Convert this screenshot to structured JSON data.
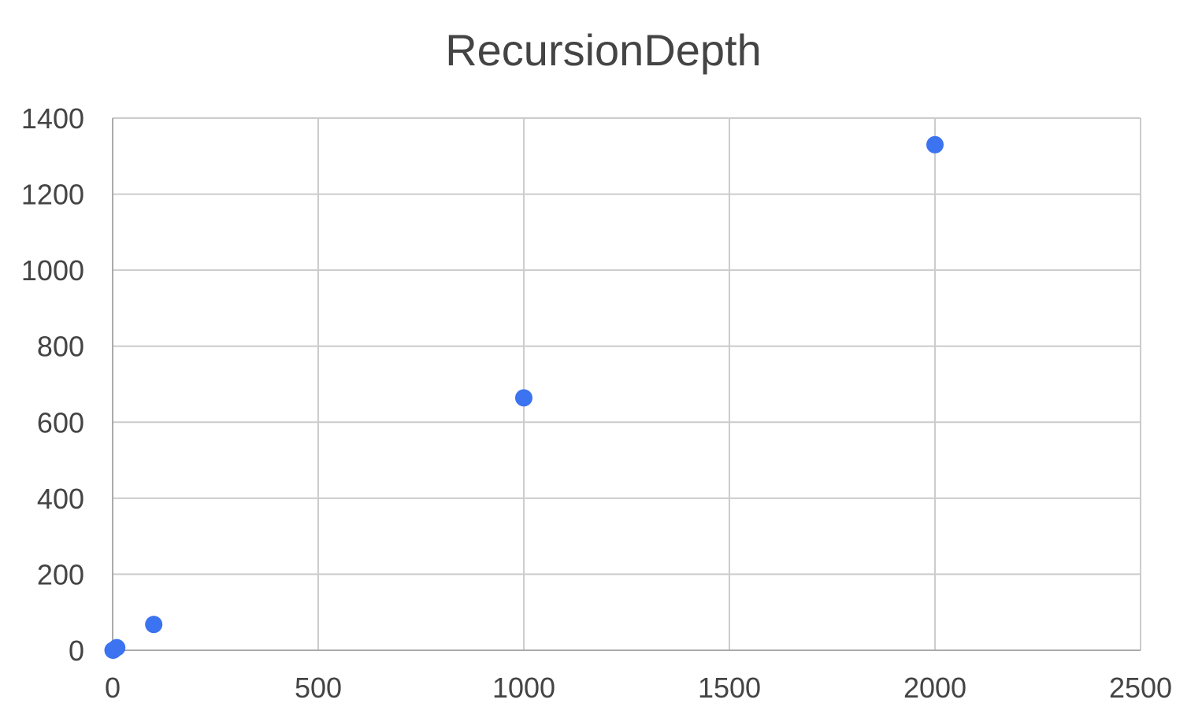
{
  "chart_data": {
    "type": "scatter",
    "title": "RecursionDepth",
    "xlabel": "",
    "ylabel": "",
    "xlim": [
      0,
      2500
    ],
    "ylim": [
      0,
      1400
    ],
    "x_ticks": [
      0,
      500,
      1000,
      1500,
      2000,
      2500
    ],
    "y_ticks": [
      0,
      200,
      400,
      600,
      800,
      1000,
      1200,
      1400
    ],
    "grid": true,
    "legend": "none",
    "series": [
      {
        "color": "#3b73f0",
        "points": [
          {
            "x": 1,
            "y": 0
          },
          {
            "x": 10,
            "y": 7
          },
          {
            "x": 100,
            "y": 68
          },
          {
            "x": 1000,
            "y": 664
          },
          {
            "x": 2000,
            "y": 1330
          }
        ]
      }
    ]
  }
}
